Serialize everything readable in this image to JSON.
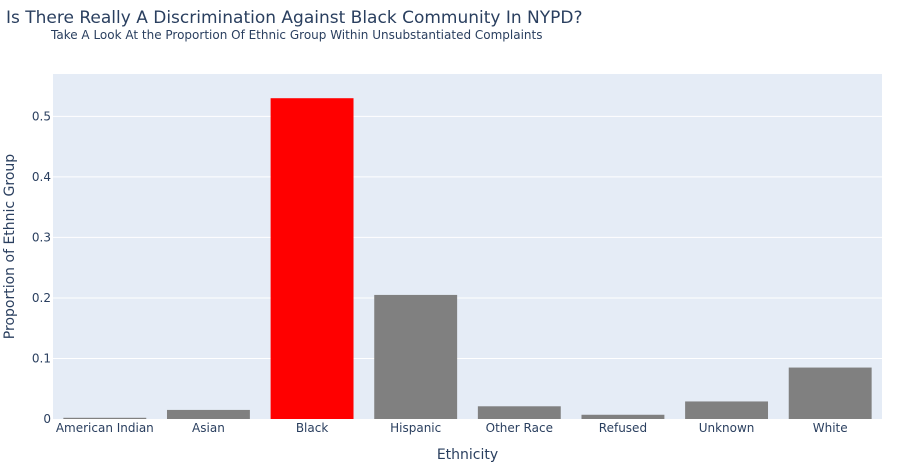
{
  "chart_data": {
    "type": "bar",
    "title": "Is There Really A Discrimination Against Black Community In NYPD?",
    "subtitle": "Take A Look At the Proportion Of Ethnic Group Within Unsubstantiated Complaints",
    "xlabel": "Ethnicity",
    "ylabel": "Proportion of Ethnic Group",
    "categories": [
      "American Indian",
      "Asian",
      "Black",
      "Hispanic",
      "Other Race",
      "Refused",
      "Unknown",
      "White"
    ],
    "values": [
      0.002,
      0.015,
      0.53,
      0.205,
      0.021,
      0.007,
      0.029,
      0.085
    ],
    "colors": [
      "#808080",
      "#808080",
      "#ff0000",
      "#808080",
      "#808080",
      "#808080",
      "#808080",
      "#808080"
    ],
    "ylim": [
      0,
      0.57
    ],
    "yticks": [
      0,
      0.1,
      0.2,
      0.3,
      0.4,
      0.5
    ],
    "ytick_labels": [
      "0",
      "0.1",
      "0.2",
      "0.3",
      "0.4",
      "0.5"
    ],
    "grid": true,
    "background": "#e5ecf6"
  }
}
